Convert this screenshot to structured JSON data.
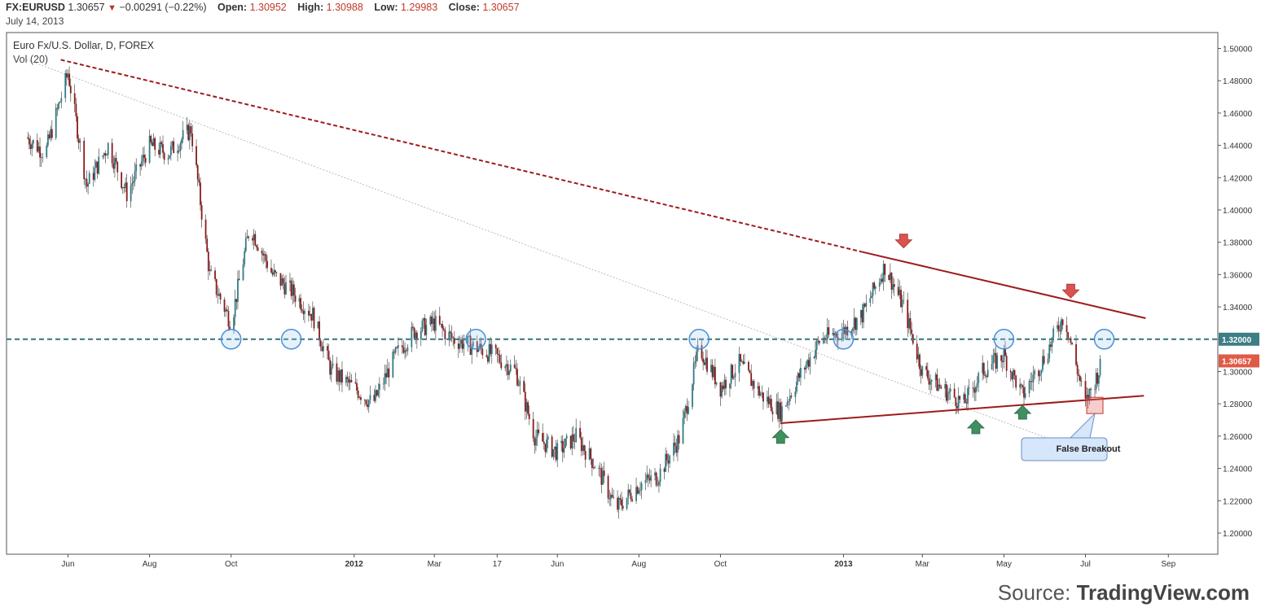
{
  "header": {
    "symbol": "FX:EURUSD",
    "last": "1.30657",
    "change": "−0.00291 (−0.22%)",
    "open_label": "Open:",
    "open": "1.30952",
    "high_label": "High:",
    "high": "1.30988",
    "low_label": "Low:",
    "low": "1.29983",
    "close_label": "Close:",
    "close": "1.30657",
    "date": "July 14, 2013"
  },
  "legend": {
    "instrument": "Euro Fx/U.S. Dollar, D, FOREX",
    "volume": "Vol (20)"
  },
  "source": {
    "prefix": "Source: ",
    "brand": "TradingView.com"
  },
  "colors": {
    "up": "#2e7d87",
    "down": "#8b1a1a",
    "trend": "#9e1b1b",
    "support": "#3d7d84",
    "circle": "#4a90d9",
    "arrow_down": "#d9534f",
    "arrow_up": "#3f8f5f",
    "price_tag": "#e05a48"
  },
  "chart_data": {
    "type": "candlestick",
    "title": "Euro Fx/U.S. Dollar, D, FOREX",
    "ylim": [
      1.19,
      1.51
    ],
    "y_ticks": [
      "1.50000",
      "1.48000",
      "1.46000",
      "1.44000",
      "1.42000",
      "1.40000",
      "1.38000",
      "1.36000",
      "1.34000",
      "1.32000",
      "1.30000",
      "1.28000",
      "1.26000",
      "1.24000",
      "1.22000",
      "1.20000"
    ],
    "x_ticks": [
      "Jun",
      "Aug",
      "Oct",
      "2012",
      "Mar",
      "17",
      "Jun",
      "Aug",
      "Oct",
      "2013",
      "Mar",
      "May",
      "Jul",
      "Sep"
    ],
    "x_ticks_bold": [
      "2012",
      "2013"
    ],
    "current_price_label": "1.30657",
    "support_label": "1.32000",
    "support_level": 1.32,
    "series": [
      {
        "name": "FX:EURUSD",
        "x": [
          "2011-05-01",
          "2011-05-15",
          "2011-06-01",
          "2011-06-15",
          "2011-07-01",
          "2011-07-15",
          "2011-08-01",
          "2011-08-15",
          "2011-09-01",
          "2011-09-15",
          "2011-10-01",
          "2011-10-15",
          "2011-11-01",
          "2011-11-15",
          "2011-12-01",
          "2011-12-15",
          "2012-01-01",
          "2012-01-15",
          "2012-02-01",
          "2012-02-15",
          "2012-03-01",
          "2012-03-15",
          "2012-04-01",
          "2012-04-15",
          "2012-05-01",
          "2012-05-15",
          "2012-06-01",
          "2012-06-15",
          "2012-07-01",
          "2012-07-15",
          "2012-08-01",
          "2012-08-15",
          "2012-09-01",
          "2012-09-15",
          "2012-10-01",
          "2012-10-15",
          "2012-11-01",
          "2012-11-15",
          "2012-12-01",
          "2012-12-15",
          "2013-01-01",
          "2013-01-15",
          "2013-02-01",
          "2013-02-15",
          "2013-03-01",
          "2013-03-15",
          "2013-04-01",
          "2013-04-15",
          "2013-05-01",
          "2013-05-15",
          "2013-06-01",
          "2013-06-15",
          "2013-07-01",
          "2013-07-14"
        ],
        "values": [
          1.445,
          1.435,
          1.485,
          1.415,
          1.44,
          1.41,
          1.44,
          1.435,
          1.45,
          1.36,
          1.33,
          1.39,
          1.36,
          1.35,
          1.335,
          1.3,
          1.29,
          1.28,
          1.31,
          1.325,
          1.33,
          1.32,
          1.315,
          1.31,
          1.3,
          1.26,
          1.25,
          1.26,
          1.24,
          1.215,
          1.23,
          1.235,
          1.26,
          1.315,
          1.29,
          1.305,
          1.285,
          1.275,
          1.3,
          1.32,
          1.325,
          1.335,
          1.365,
          1.34,
          1.3,
          1.29,
          1.28,
          1.3,
          1.31,
          1.285,
          1.31,
          1.335,
          1.28,
          1.3066
        ]
      }
    ],
    "annotations": {
      "false_breakout_label": "False Breakout",
      "resistance_line": [
        [
          "2011-05-01",
          1.495
        ],
        [
          "2013-08-15",
          1.333
        ]
      ],
      "support_line": [
        [
          "2012-11-15",
          1.268
        ],
        [
          "2013-09-01",
          1.285
        ]
      ],
      "gray_line": [
        [
          "2011-05-01",
          1.493
        ],
        [
          "2013-07-01",
          1.25
        ]
      ],
      "down_arrows": [
        [
          "2013-02-15",
          1.378
        ],
        [
          "2013-06-20",
          1.347
        ]
      ],
      "up_arrows": [
        [
          "2012-11-15",
          1.26
        ],
        [
          "2013-04-10",
          1.266
        ],
        [
          "2013-05-15",
          1.275
        ]
      ],
      "circles": [
        [
          "2011-10-01",
          1.32
        ],
        [
          "2011-11-15",
          1.32
        ],
        [
          "2012-04-01",
          1.32
        ],
        [
          "2012-09-15",
          1.32
        ],
        [
          "2013-01-01",
          1.32
        ],
        [
          "2013-05-01",
          1.32
        ],
        [
          "2013-07-15",
          1.32
        ]
      ]
    }
  }
}
